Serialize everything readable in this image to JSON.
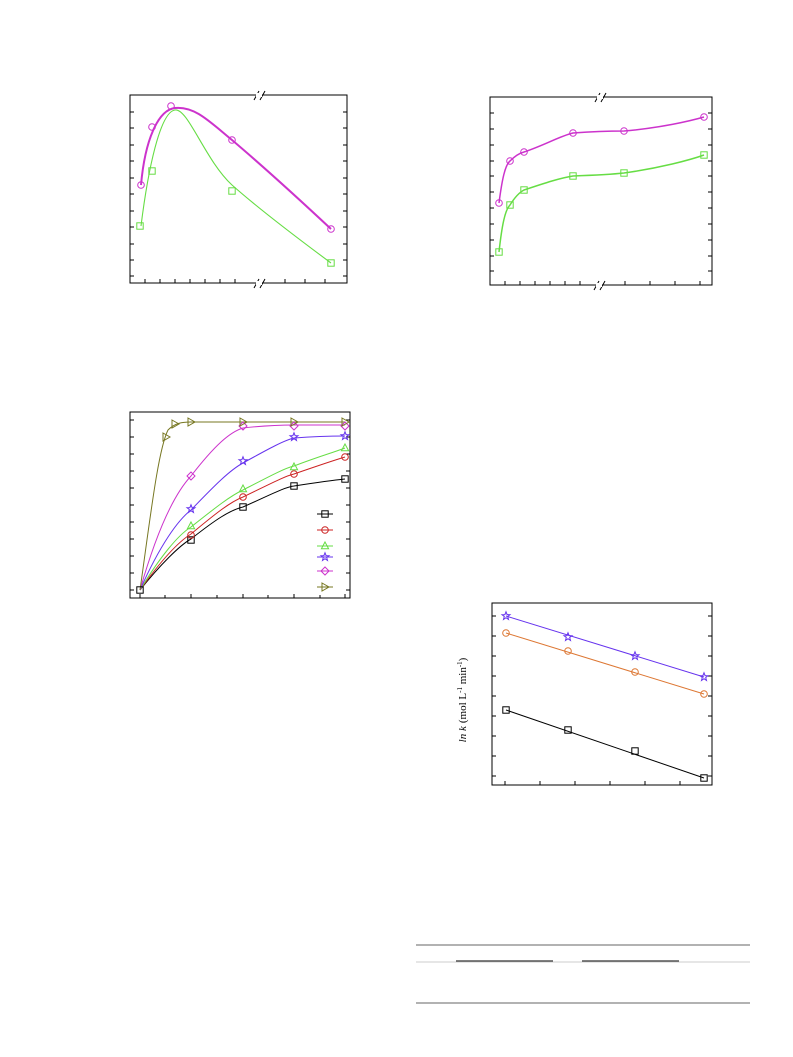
{
  "figure_4": {
    "y_axis_label": {
      "symbol": "ln k",
      "unit_parts": [
        "(mol L",
        "-1",
        " min",
        "-1",
        ")"
      ]
    }
  }
}
